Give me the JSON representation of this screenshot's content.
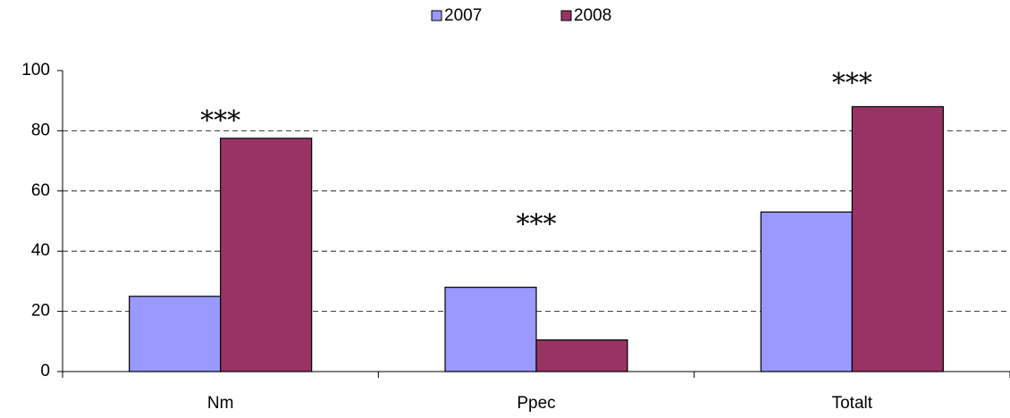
{
  "chart_data": {
    "type": "bar",
    "categories": [
      "Nm",
      "Ppec",
      "Totalt"
    ],
    "series": [
      {
        "name": "2007",
        "color": "#9999ff",
        "values": [
          25,
          28,
          53
        ]
      },
      {
        "name": "2008",
        "color": "#993366",
        "values": [
          77.5,
          10.5,
          88
        ]
      }
    ],
    "annotations": [
      "***",
      "***",
      "***"
    ],
    "ylim": [
      0,
      100
    ],
    "yticks": [
      0,
      20,
      40,
      60,
      80,
      100
    ],
    "grid": true,
    "legend": "top"
  }
}
